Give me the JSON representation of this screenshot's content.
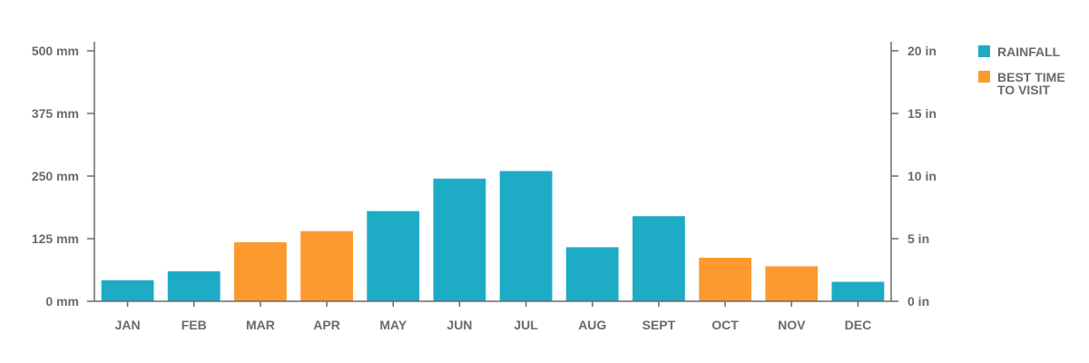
{
  "chart_data": {
    "type": "bar",
    "categories": [
      "JAN",
      "FEB",
      "MAR",
      "APR",
      "MAY",
      "JUN",
      "JUL",
      "AUG",
      "SEPT",
      "OCT",
      "NOV",
      "DEC"
    ],
    "values": [
      42,
      60,
      118,
      140,
      180,
      245,
      260,
      108,
      170,
      87,
      70,
      39
    ],
    "highlight": [
      false,
      false,
      true,
      true,
      false,
      false,
      false,
      false,
      false,
      true,
      true,
      false
    ],
    "ylim": [
      0,
      500
    ],
    "y_ticks": [
      0,
      125,
      250,
      375,
      500
    ],
    "y_tick_labels": [
      "0 mm",
      "125 mm",
      "250 mm",
      "375 mm",
      "500 mm"
    ],
    "y2_ticks": [
      0,
      5,
      10,
      15,
      20
    ],
    "y2_tick_labels": [
      "0 in",
      "5 in",
      "10 in",
      "15 in",
      "20 in"
    ],
    "y2lim": [
      0,
      20
    ],
    "colors": {
      "rainfall": "#1eabc6",
      "best_time": "#fd9a2f",
      "axis": "#6b6b6b"
    },
    "legend": {
      "position": "top-right",
      "items": [
        {
          "key": "rainfall",
          "lines": [
            "RAINFALL"
          ]
        },
        {
          "key": "best_time",
          "lines": [
            "BEST TIME",
            "TO VISIT"
          ]
        }
      ]
    },
    "grid": false
  }
}
